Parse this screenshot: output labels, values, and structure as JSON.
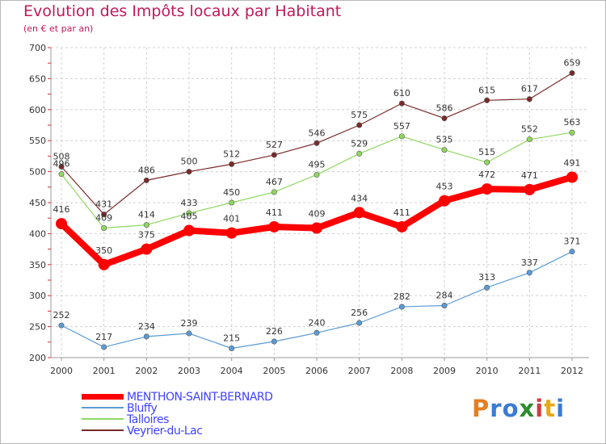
{
  "chart_data": {
    "type": "line",
    "title": "Evolution des Impôts locaux par Habitant",
    "subtitle": "(en € et par an)",
    "xlabel": "",
    "ylabel": "",
    "x": [
      "2000",
      "2001",
      "2002",
      "2003",
      "2004",
      "2005",
      "2006",
      "2007",
      "2008",
      "2009",
      "2010",
      "2011",
      "2012"
    ],
    "ylim": [
      200,
      700
    ],
    "yticks": [
      200,
      250,
      300,
      350,
      400,
      450,
      500,
      550,
      600,
      650,
      700
    ],
    "grid": true,
    "legend_position": "bottom-left",
    "series": [
      {
        "name": "MENTHON-SAINT-BERNARD",
        "color": "#ff0000",
        "values": [
          416,
          350,
          375,
          405,
          401,
          411,
          409,
          434,
          411,
          453,
          472,
          471,
          491
        ]
      },
      {
        "name": "Bluffy",
        "color": "#5b9bd5",
        "values": [
          252,
          217,
          234,
          239,
          215,
          226,
          240,
          256,
          282,
          284,
          313,
          337,
          371
        ]
      },
      {
        "name": "Talloires",
        "color": "#8fd85f",
        "values": [
          496,
          409,
          414,
          433,
          450,
          467,
          495,
          529,
          557,
          535,
          515,
          552,
          563
        ]
      },
      {
        "name": "Veyrier-du-Lac",
        "color": "#7a2a2a",
        "values": [
          508,
          431,
          486,
          500,
          512,
          527,
          546,
          575,
          610,
          586,
          615,
          617,
          659
        ]
      }
    ]
  },
  "brand": {
    "text": "Proxiti",
    "letters": [
      "P",
      "r",
      "o",
      "x",
      "i",
      "t",
      "i"
    ],
    "colors": [
      "#e67e22",
      "#3a7bd5",
      "#3a7bd5",
      "#2e8b2e",
      "#d23c3c",
      "#e6a817",
      "#3a7bd5"
    ]
  }
}
